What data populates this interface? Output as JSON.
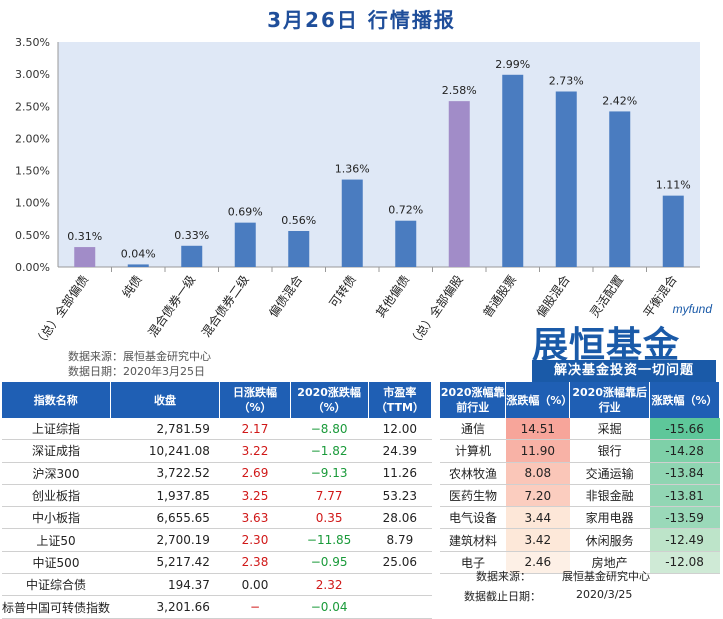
{
  "title": "3月26日  行情播报",
  "chart_data": {
    "type": "bar",
    "categories": [
      "（总）全部偏债",
      "纯债",
      "混合债券一级",
      "混合债券二级",
      "偏债混合",
      "可转债",
      "其他偏债",
      "（总）全部偏股",
      "普通股票",
      "偏股混合",
      "灵活配置",
      "平衡混合"
    ],
    "values": [
      0.31,
      0.04,
      0.33,
      0.69,
      0.56,
      1.36,
      0.72,
      2.58,
      2.99,
      2.73,
      2.42,
      1.11
    ],
    "data_labels": [
      "0.31%",
      "0.04%",
      "0.33%",
      "0.69%",
      "0.56%",
      "1.36%",
      "0.72%",
      "2.58%",
      "2.99%",
      "2.73%",
      "2.42%",
      "1.11%"
    ],
    "y_ticks": [
      "0.00%",
      "0.50%",
      "1.00%",
      "1.50%",
      "2.00%",
      "2.50%",
      "3.00%",
      "3.50%"
    ],
    "ylim": [
      0,
      3.5
    ],
    "colors": [
      "#a18cc8",
      "#4a7cc0",
      "#4a7cc0",
      "#4a7cc0",
      "#4a7cc0",
      "#4a7cc0",
      "#4a7cc0",
      "#a18cc8",
      "#4a7cc0",
      "#4a7cc0",
      "#4a7cc0",
      "#4a7cc0"
    ],
    "plot_bg": "#dfe8f6"
  },
  "source": {
    "line1": "数据来源：展恒基金研究中心",
    "line2": "数据日期：2020年3月25日"
  },
  "logo": {
    "small": "myfund",
    "big": "展恒基金",
    "slogan": "解决基金投资一切问题"
  },
  "index_table": {
    "headers": [
      "指数名称",
      "收盘",
      "日涨跌幅（%）",
      "2020涨跌幅（%）",
      "市盈率（TTM）"
    ],
    "rows": [
      {
        "name": "上证综指",
        "close": "2,781.59",
        "day": "2.17",
        "day_c": "red",
        "ytd": "−8.80",
        "ytd_c": "green",
        "pe": "12.00"
      },
      {
        "name": "深证成指",
        "close": "10,241.08",
        "day": "3.22",
        "day_c": "red",
        "ytd": "−1.82",
        "ytd_c": "green",
        "pe": "24.39"
      },
      {
        "name": "沪深300",
        "close": "3,722.52",
        "day": "2.69",
        "day_c": "red",
        "ytd": "−9.13",
        "ytd_c": "green",
        "pe": "11.26"
      },
      {
        "name": "创业板指",
        "close": "1,937.85",
        "day": "3.25",
        "day_c": "red",
        "ytd": "7.77",
        "ytd_c": "red",
        "pe": "53.23"
      },
      {
        "name": "中小板指",
        "close": "6,655.65",
        "day": "3.63",
        "day_c": "red",
        "ytd": "0.35",
        "ytd_c": "red",
        "pe": "28.06"
      },
      {
        "name": "上证50",
        "close": "2,700.19",
        "day": "2.30",
        "day_c": "red",
        "ytd": "−11.85",
        "ytd_c": "green",
        "pe": "8.79"
      },
      {
        "name": "中证500",
        "close": "5,217.42",
        "day": "2.38",
        "day_c": "red",
        "ytd": "−0.95",
        "ytd_c": "green",
        "pe": "25.06"
      },
      {
        "name": "中证综合债",
        "close": "194.37",
        "day": "0.00",
        "day_c": "black",
        "ytd": "2.32",
        "ytd_c": "red",
        "pe": ""
      },
      {
        "name": "标普中国可转债指数",
        "close": "3,201.66",
        "day": "−",
        "day_c": "red",
        "ytd": "−0.04",
        "ytd_c": "green",
        "pe": ""
      }
    ]
  },
  "industry_table": {
    "headers": [
      "2020涨幅靠前行业",
      "涨跌幅（%）",
      "2020涨幅靠后行业",
      "涨跌幅（%）"
    ],
    "rows": [
      {
        "top": "通信",
        "top_v": "14.51",
        "top_bg": "#f7a59a",
        "bot": "采掘",
        "bot_v": "-15.66",
        "bot_bg": "#5ec79a"
      },
      {
        "top": "计算机",
        "top_v": "11.90",
        "top_bg": "#f8b2a6",
        "bot": "银行",
        "bot_v": "-14.28",
        "bot_bg": "#7ed0a8"
      },
      {
        "top": "农林牧渔",
        "top_v": "8.08",
        "top_bg": "#fac6b8",
        "bot": "交通运输",
        "bot_v": "-13.84",
        "bot_bg": "#8fd5b2"
      },
      {
        "top": "医药生物",
        "top_v": "7.20",
        "top_bg": "#fbcdbf",
        "bot": "非银金融",
        "bot_v": "-13.81",
        "bot_bg": "#92d6b4"
      },
      {
        "top": "电气设备",
        "top_v": "3.44",
        "top_bg": "#fde7d8",
        "bot": "家用电器",
        "bot_v": "-13.59",
        "bot_bg": "#9ad9b9"
      },
      {
        "top": "建筑材料",
        "top_v": "3.42",
        "top_bg": "#fde8d9",
        "bot": "休闲服务",
        "bot_v": "-12.49",
        "bot_bg": "#bde4c9"
      },
      {
        "top": "电子",
        "top_v": "2.46",
        "top_bg": "#fdf0e6",
        "bot": "房地产",
        "bot_v": "-12.08",
        "bot_bg": "#cfead6"
      }
    ],
    "foot1_label": "数据来源：",
    "foot1_value": "展恒基金研究中心",
    "foot2_label": "数据截止日期：",
    "foot2_value": "2020/3/25"
  }
}
